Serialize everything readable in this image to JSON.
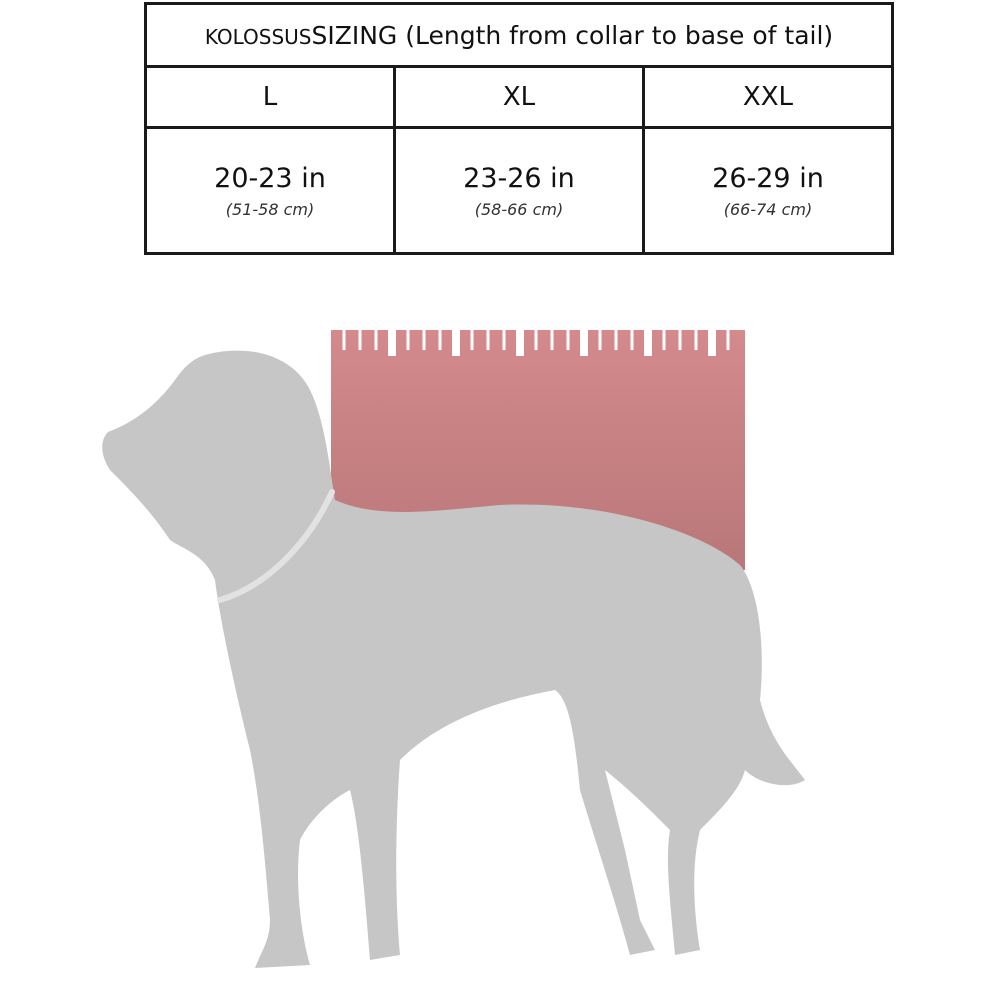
{
  "table": {
    "brand": "KOLOSSUS",
    "title": "SIZING (Length from collar to base of tail)",
    "sizes": [
      {
        "label": "L",
        "inches": "20-23 in",
        "cm": "(51-58 cm)"
      },
      {
        "label": "XL",
        "inches": "23-26 in",
        "cm": "(58-66 cm)"
      },
      {
        "label": "XXL",
        "inches": "26-29 in",
        "cm": "(66-74 cm)"
      }
    ]
  },
  "illustration": {
    "dog_color": "#c6c6c6",
    "collar_color": "#e2e2e2",
    "ruler_color_top": "#d48a8c",
    "ruler_color_bottom": "#b97779"
  }
}
